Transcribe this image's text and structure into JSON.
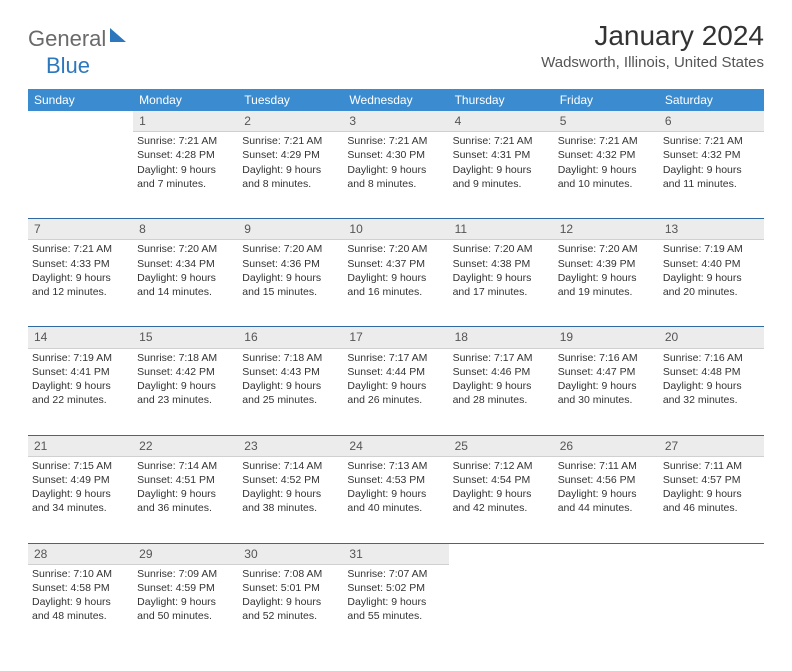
{
  "brand": {
    "part1": "General",
    "part2": "Blue"
  },
  "title": "January 2024",
  "location": "Wadsworth, Illinois, United States",
  "day_headers": [
    "Sunday",
    "Monday",
    "Tuesday",
    "Wednesday",
    "Thursday",
    "Friday",
    "Saturday"
  ],
  "colors": {
    "header_bg": "#3a8bcf",
    "header_fg": "#ffffff",
    "daynum_bg": "#ececec",
    "brand_gray": "#6a6a6a",
    "brand_blue": "#2d78bd",
    "rule": "#2f6aa0"
  },
  "weeks": [
    {
      "nums": [
        "",
        "1",
        "2",
        "3",
        "4",
        "5",
        "6"
      ],
      "cells": [
        [],
        [
          "Sunrise: 7:21 AM",
          "Sunset: 4:28 PM",
          "Daylight: 9 hours",
          "and 7 minutes."
        ],
        [
          "Sunrise: 7:21 AM",
          "Sunset: 4:29 PM",
          "Daylight: 9 hours",
          "and 8 minutes."
        ],
        [
          "Sunrise: 7:21 AM",
          "Sunset: 4:30 PM",
          "Daylight: 9 hours",
          "and 8 minutes."
        ],
        [
          "Sunrise: 7:21 AM",
          "Sunset: 4:31 PM",
          "Daylight: 9 hours",
          "and 9 minutes."
        ],
        [
          "Sunrise: 7:21 AM",
          "Sunset: 4:32 PM",
          "Daylight: 9 hours",
          "and 10 minutes."
        ],
        [
          "Sunrise: 7:21 AM",
          "Sunset: 4:32 PM",
          "Daylight: 9 hours",
          "and 11 minutes."
        ]
      ]
    },
    {
      "nums": [
        "7",
        "8",
        "9",
        "10",
        "11",
        "12",
        "13"
      ],
      "cells": [
        [
          "Sunrise: 7:21 AM",
          "Sunset: 4:33 PM",
          "Daylight: 9 hours",
          "and 12 minutes."
        ],
        [
          "Sunrise: 7:20 AM",
          "Sunset: 4:34 PM",
          "Daylight: 9 hours",
          "and 14 minutes."
        ],
        [
          "Sunrise: 7:20 AM",
          "Sunset: 4:36 PM",
          "Daylight: 9 hours",
          "and 15 minutes."
        ],
        [
          "Sunrise: 7:20 AM",
          "Sunset: 4:37 PM",
          "Daylight: 9 hours",
          "and 16 minutes."
        ],
        [
          "Sunrise: 7:20 AM",
          "Sunset: 4:38 PM",
          "Daylight: 9 hours",
          "and 17 minutes."
        ],
        [
          "Sunrise: 7:20 AM",
          "Sunset: 4:39 PM",
          "Daylight: 9 hours",
          "and 19 minutes."
        ],
        [
          "Sunrise: 7:19 AM",
          "Sunset: 4:40 PM",
          "Daylight: 9 hours",
          "and 20 minutes."
        ]
      ]
    },
    {
      "nums": [
        "14",
        "15",
        "16",
        "17",
        "18",
        "19",
        "20"
      ],
      "cells": [
        [
          "Sunrise: 7:19 AM",
          "Sunset: 4:41 PM",
          "Daylight: 9 hours",
          "and 22 minutes."
        ],
        [
          "Sunrise: 7:18 AM",
          "Sunset: 4:42 PM",
          "Daylight: 9 hours",
          "and 23 minutes."
        ],
        [
          "Sunrise: 7:18 AM",
          "Sunset: 4:43 PM",
          "Daylight: 9 hours",
          "and 25 minutes."
        ],
        [
          "Sunrise: 7:17 AM",
          "Sunset: 4:44 PM",
          "Daylight: 9 hours",
          "and 26 minutes."
        ],
        [
          "Sunrise: 7:17 AM",
          "Sunset: 4:46 PM",
          "Daylight: 9 hours",
          "and 28 minutes."
        ],
        [
          "Sunrise: 7:16 AM",
          "Sunset: 4:47 PM",
          "Daylight: 9 hours",
          "and 30 minutes."
        ],
        [
          "Sunrise: 7:16 AM",
          "Sunset: 4:48 PM",
          "Daylight: 9 hours",
          "and 32 minutes."
        ]
      ]
    },
    {
      "nums": [
        "21",
        "22",
        "23",
        "24",
        "25",
        "26",
        "27"
      ],
      "cells": [
        [
          "Sunrise: 7:15 AM",
          "Sunset: 4:49 PM",
          "Daylight: 9 hours",
          "and 34 minutes."
        ],
        [
          "Sunrise: 7:14 AM",
          "Sunset: 4:51 PM",
          "Daylight: 9 hours",
          "and 36 minutes."
        ],
        [
          "Sunrise: 7:14 AM",
          "Sunset: 4:52 PM",
          "Daylight: 9 hours",
          "and 38 minutes."
        ],
        [
          "Sunrise: 7:13 AM",
          "Sunset: 4:53 PM",
          "Daylight: 9 hours",
          "and 40 minutes."
        ],
        [
          "Sunrise: 7:12 AM",
          "Sunset: 4:54 PM",
          "Daylight: 9 hours",
          "and 42 minutes."
        ],
        [
          "Sunrise: 7:11 AM",
          "Sunset: 4:56 PM",
          "Daylight: 9 hours",
          "and 44 minutes."
        ],
        [
          "Sunrise: 7:11 AM",
          "Sunset: 4:57 PM",
          "Daylight: 9 hours",
          "and 46 minutes."
        ]
      ]
    },
    {
      "nums": [
        "28",
        "29",
        "30",
        "31",
        "",
        "",
        ""
      ],
      "cells": [
        [
          "Sunrise: 7:10 AM",
          "Sunset: 4:58 PM",
          "Daylight: 9 hours",
          "and 48 minutes."
        ],
        [
          "Sunrise: 7:09 AM",
          "Sunset: 4:59 PM",
          "Daylight: 9 hours",
          "and 50 minutes."
        ],
        [
          "Sunrise: 7:08 AM",
          "Sunset: 5:01 PM",
          "Daylight: 9 hours",
          "and 52 minutes."
        ],
        [
          "Sunrise: 7:07 AM",
          "Sunset: 5:02 PM",
          "Daylight: 9 hours",
          "and 55 minutes."
        ],
        [],
        [],
        []
      ]
    }
  ]
}
